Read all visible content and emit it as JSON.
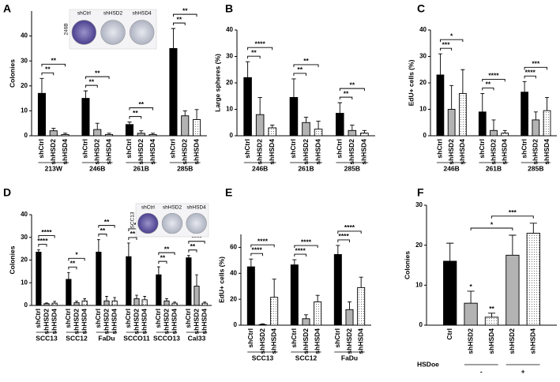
{
  "chart_data": [
    {
      "panel": "A",
      "type": "bar",
      "ylabel": "Colonies",
      "ylim": [
        0,
        50
      ],
      "yticks": [
        0,
        10,
        20,
        30,
        40
      ],
      "bar_styles": [
        "#000000",
        "#b3b3b3",
        "dots"
      ],
      "inset": {
        "labels": [
          "shCtrl",
          "shHSD2",
          "shHSD4"
        ],
        "cell_line": "246B"
      },
      "groups": [
        {
          "name": "213W",
          "categories": [
            "shCtrl",
            "shHSD2",
            "shHSD4"
          ],
          "values": [
            17,
            2,
            0.5
          ],
          "errors": [
            6,
            1,
            0.5
          ],
          "significance": [
            null,
            "**",
            "**"
          ]
        },
        {
          "name": "246B",
          "categories": [
            "shCtrl",
            "shHSD2",
            "shHSD4"
          ],
          "values": [
            15,
            2.5,
            0.5
          ],
          "errors": [
            3,
            2.5,
            0.5
          ],
          "significance": [
            null,
            "**",
            "**"
          ]
        },
        {
          "name": "261B",
          "categories": [
            "shCtrl",
            "shHSD2",
            "shHSD4"
          ],
          "values": [
            4.5,
            1,
            0.5
          ],
          "errors": [
            1,
            1,
            0.5
          ],
          "significance": [
            null,
            "**",
            "**"
          ]
        },
        {
          "name": "285B",
          "categories": [
            "shCtrl",
            "shHSD2",
            "shHSD4"
          ],
          "values": [
            35,
            8,
            6.5
          ],
          "errors": [
            8,
            2,
            4
          ],
          "significance": [
            null,
            "**",
            "**"
          ]
        }
      ]
    },
    {
      "panel": "B",
      "type": "bar",
      "ylabel": "Large spheres (%)",
      "ylim": [
        0,
        40
      ],
      "yticks": [
        0,
        10,
        20,
        30,
        40
      ],
      "bar_styles": [
        "#000000",
        "#b3b3b3",
        "dots"
      ],
      "groups": [
        {
          "name": "246B",
          "categories": [
            "shCtrl",
            "shHSD2",
            "shHSD4"
          ],
          "values": [
            22,
            8,
            3
          ],
          "errors": [
            6,
            6.5,
            1
          ],
          "significance": [
            null,
            "**",
            "****"
          ]
        },
        {
          "name": "261B",
          "categories": [
            "shCtrl",
            "shHSD2",
            "shHSD4"
          ],
          "values": [
            14.5,
            5,
            2.5
          ],
          "errors": [
            7,
            2,
            3
          ],
          "significance": [
            null,
            "**",
            "**"
          ]
        },
        {
          "name": "285B",
          "categories": [
            "shCtrl",
            "shHSD2",
            "shHSD4"
          ],
          "values": [
            8.5,
            2,
            1
          ],
          "errors": [
            4,
            2,
            1
          ],
          "significance": [
            null,
            "**",
            "**"
          ]
        }
      ]
    },
    {
      "panel": "C",
      "type": "bar",
      "ylabel": "EdU+ cells (%)",
      "ylim": [
        0,
        40
      ],
      "yticks": [
        0,
        10,
        20,
        30,
        40
      ],
      "bar_styles": [
        "#000000",
        "#b3b3b3",
        "dots"
      ],
      "groups": [
        {
          "name": "246B",
          "categories": [
            "shCtrl",
            "shHSD2",
            "shHSD4"
          ],
          "values": [
            23,
            10,
            16
          ],
          "errors": [
            8,
            9,
            9
          ],
          "significance": [
            null,
            "***",
            "*"
          ]
        },
        {
          "name": "261B",
          "categories": [
            "shCtrl",
            "shHSD2",
            "shHSD4"
          ],
          "values": [
            9,
            2,
            1
          ],
          "errors": [
            7,
            4,
            1
          ],
          "significance": [
            null,
            "**",
            "****"
          ]
        },
        {
          "name": "285B",
          "categories": [
            "shCtrl",
            "shHSD2",
            "shHSD4"
          ],
          "values": [
            16.5,
            6,
            9.5
          ],
          "errors": [
            4,
            3,
            5
          ],
          "significance": [
            null,
            "****",
            "***"
          ]
        }
      ]
    },
    {
      "panel": "D",
      "type": "bar",
      "ylabel": "Colonies",
      "ylim": [
        0,
        40
      ],
      "yticks": [
        0,
        10,
        20,
        30,
        40
      ],
      "bar_styles": [
        "#000000",
        "#b3b3b3",
        "dots"
      ],
      "inset": {
        "labels": [
          "shCtrl",
          "shHSD2",
          "shHSD4"
        ],
        "cell_line": "SCC13"
      },
      "groups": [
        {
          "name": "SCC13",
          "categories": [
            "shCtrl",
            "shHSD2",
            "shHSD4"
          ],
          "values": [
            23.5,
            0.8,
            1
          ],
          "errors": [
            1,
            0.3,
            0.8
          ],
          "significance": [
            null,
            "****",
            "****"
          ]
        },
        {
          "name": "SCC12",
          "categories": [
            "shCtrl",
            "shHSD2",
            "shHSD4"
          ],
          "values": [
            11.5,
            1.2,
            2
          ],
          "errors": [
            3,
            0.7,
            1
          ],
          "significance": [
            null,
            "**",
            "*"
          ]
        },
        {
          "name": "FaDu",
          "categories": [
            "shCtrl",
            "shHSD2",
            "shHSD4"
          ],
          "values": [
            23.5,
            2,
            2
          ],
          "errors": [
            5.5,
            2,
            1.5
          ],
          "significance": [
            null,
            "**",
            "**"
          ]
        },
        {
          "name": "SCCO11",
          "categories": [
            "shCtrl",
            "shHSD2",
            "shHSD4"
          ],
          "values": [
            21.5,
            3,
            2.5
          ],
          "errors": [
            6,
            1.5,
            1.5
          ],
          "significance": [
            null,
            "**",
            "**"
          ]
        },
        {
          "name": "SCCO13",
          "categories": [
            "shCtrl",
            "shHSD2",
            "shHSD4"
          ],
          "values": [
            13.5,
            2,
            1
          ],
          "errors": [
            3.5,
            1,
            0.5
          ],
          "significance": [
            null,
            "**",
            "**"
          ]
        },
        {
          "name": "Cal33",
          "categories": [
            "shCtrl",
            "shHSD2",
            "shHSD4"
          ],
          "values": [
            21,
            8.5,
            1
          ],
          "errors": [
            1,
            5,
            0.5
          ],
          "significance": [
            null,
            "**",
            "****"
          ]
        }
      ]
    },
    {
      "panel": "E",
      "type": "bar",
      "ylabel": "EdU+ cells (%)",
      "ylim": [
        0,
        70
      ],
      "yticks": [
        0,
        20,
        40,
        60
      ],
      "bar_styles": [
        "#000000",
        "#b3b3b3",
        "dots"
      ],
      "groups": [
        {
          "name": "SCC13",
          "categories": [
            "shCtrl",
            "shHSD2",
            "shHSD4"
          ],
          "values": [
            45,
            0.5,
            21.5
          ],
          "errors": [
            6,
            0.5,
            14
          ],
          "significance": [
            null,
            "****",
            "****"
          ]
        },
        {
          "name": "SCC12",
          "categories": [
            "shCtrl",
            "shHSD2",
            "shHSD4"
          ],
          "values": [
            46.5,
            5,
            18
          ],
          "errors": [
            4,
            3,
            5
          ],
          "significance": [
            null,
            "****",
            "****"
          ]
        },
        {
          "name": "FaDu",
          "categories": [
            "shCtrl",
            "shHSD2",
            "shHSD4"
          ],
          "values": [
            54.5,
            12,
            29
          ],
          "errors": [
            7,
            6,
            8
          ],
          "significance": [
            null,
            "****",
            "****"
          ]
        }
      ]
    },
    {
      "panel": "F",
      "type": "bar",
      "ylabel": "Colonies",
      "ylim": [
        0,
        30
      ],
      "yticks": [
        0,
        10,
        20,
        30
      ],
      "factor": {
        "label": "HSDoe",
        "levels": [
          "-",
          "+"
        ]
      },
      "groups": [
        {
          "name": null,
          "categories": [
            "Ctrl",
            "shHSD2",
            "shHSD4",
            "shHSD2",
            "shHSD4"
          ],
          "values": [
            16,
            5.5,
            2,
            17.5,
            23
          ],
          "errors": [
            4.5,
            3,
            1,
            5,
            2.5
          ],
          "bar_styles": [
            "#000000",
            "#b3b3b3",
            "dots",
            "#b3b3b3",
            "dots"
          ],
          "significance": [
            null,
            "*",
            "**",
            null,
            null
          ],
          "oe_significance": [
            null,
            null,
            null,
            "*",
            "***"
          ]
        }
      ]
    }
  ]
}
